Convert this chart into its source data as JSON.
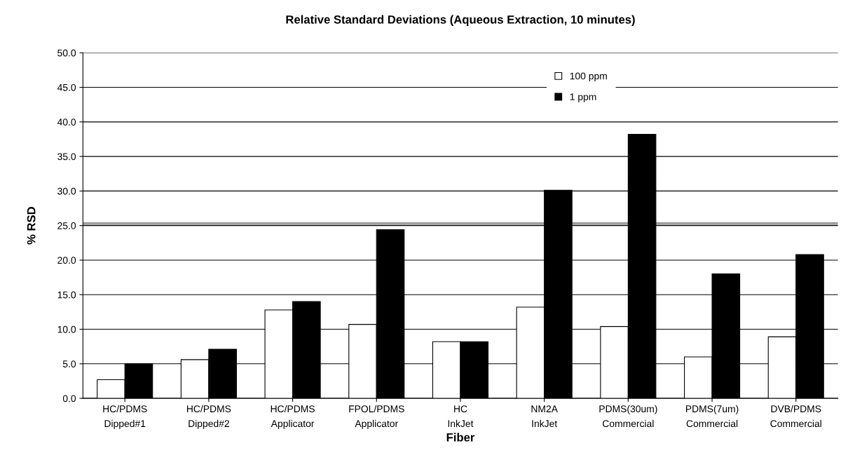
{
  "chart_data": {
    "type": "bar",
    "title": "Relative Standard Deviations (Aqueous Extraction, 10 minutes)",
    "xlabel": "Fiber",
    "ylabel": "% RSD",
    "categories": [
      "HC/PDMS\nDipped#1",
      "HC/PDMS\nDipped#2",
      "HC/PDMS\nApplicator",
      "FPOL/PDMS\nApplicator",
      "HC\nInkJet",
      "NM2A\nInkJet",
      "PDMS(30um)\nCommercial",
      "PDMS(7um)\nCommercial",
      "DVB/PDMS\nCommercial"
    ],
    "series": [
      {
        "name": "100 ppm",
        "color": "#ffffff",
        "values": [
          2.7,
          5.6,
          12.8,
          10.7,
          8.2,
          13.2,
          10.4,
          6.0,
          8.9
        ]
      },
      {
        "name": "1 ppm",
        "color": "#000000",
        "values": [
          5.0,
          7.1,
          14.0,
          24.4,
          8.2,
          30.1,
          38.2,
          18.0,
          20.8
        ]
      }
    ],
    "ylim": [
      0,
      50
    ],
    "yticks": [
      {
        "value": 0,
        "label": "0.0"
      },
      {
        "value": 5,
        "label": "5.0"
      },
      {
        "value": 10,
        "label": "10.0"
      },
      {
        "value": 15,
        "label": "15.0"
      },
      {
        "value": 20,
        "label": "20.0"
      },
      {
        "value": 25,
        "label": "25.0"
      },
      {
        "value": 30,
        "label": "30.0"
      },
      {
        "value": 35,
        "label": "35.0"
      },
      {
        "value": 40,
        "label": "40.0"
      },
      {
        "value": 45,
        "label": "45.0"
      },
      {
        "value": 50,
        "label": "50.0"
      }
    ],
    "ref_lines": [
      {
        "axis": "y",
        "value": 25.3,
        "color": "#a0a0a0"
      }
    ],
    "grid": "y",
    "legend": "top"
  }
}
